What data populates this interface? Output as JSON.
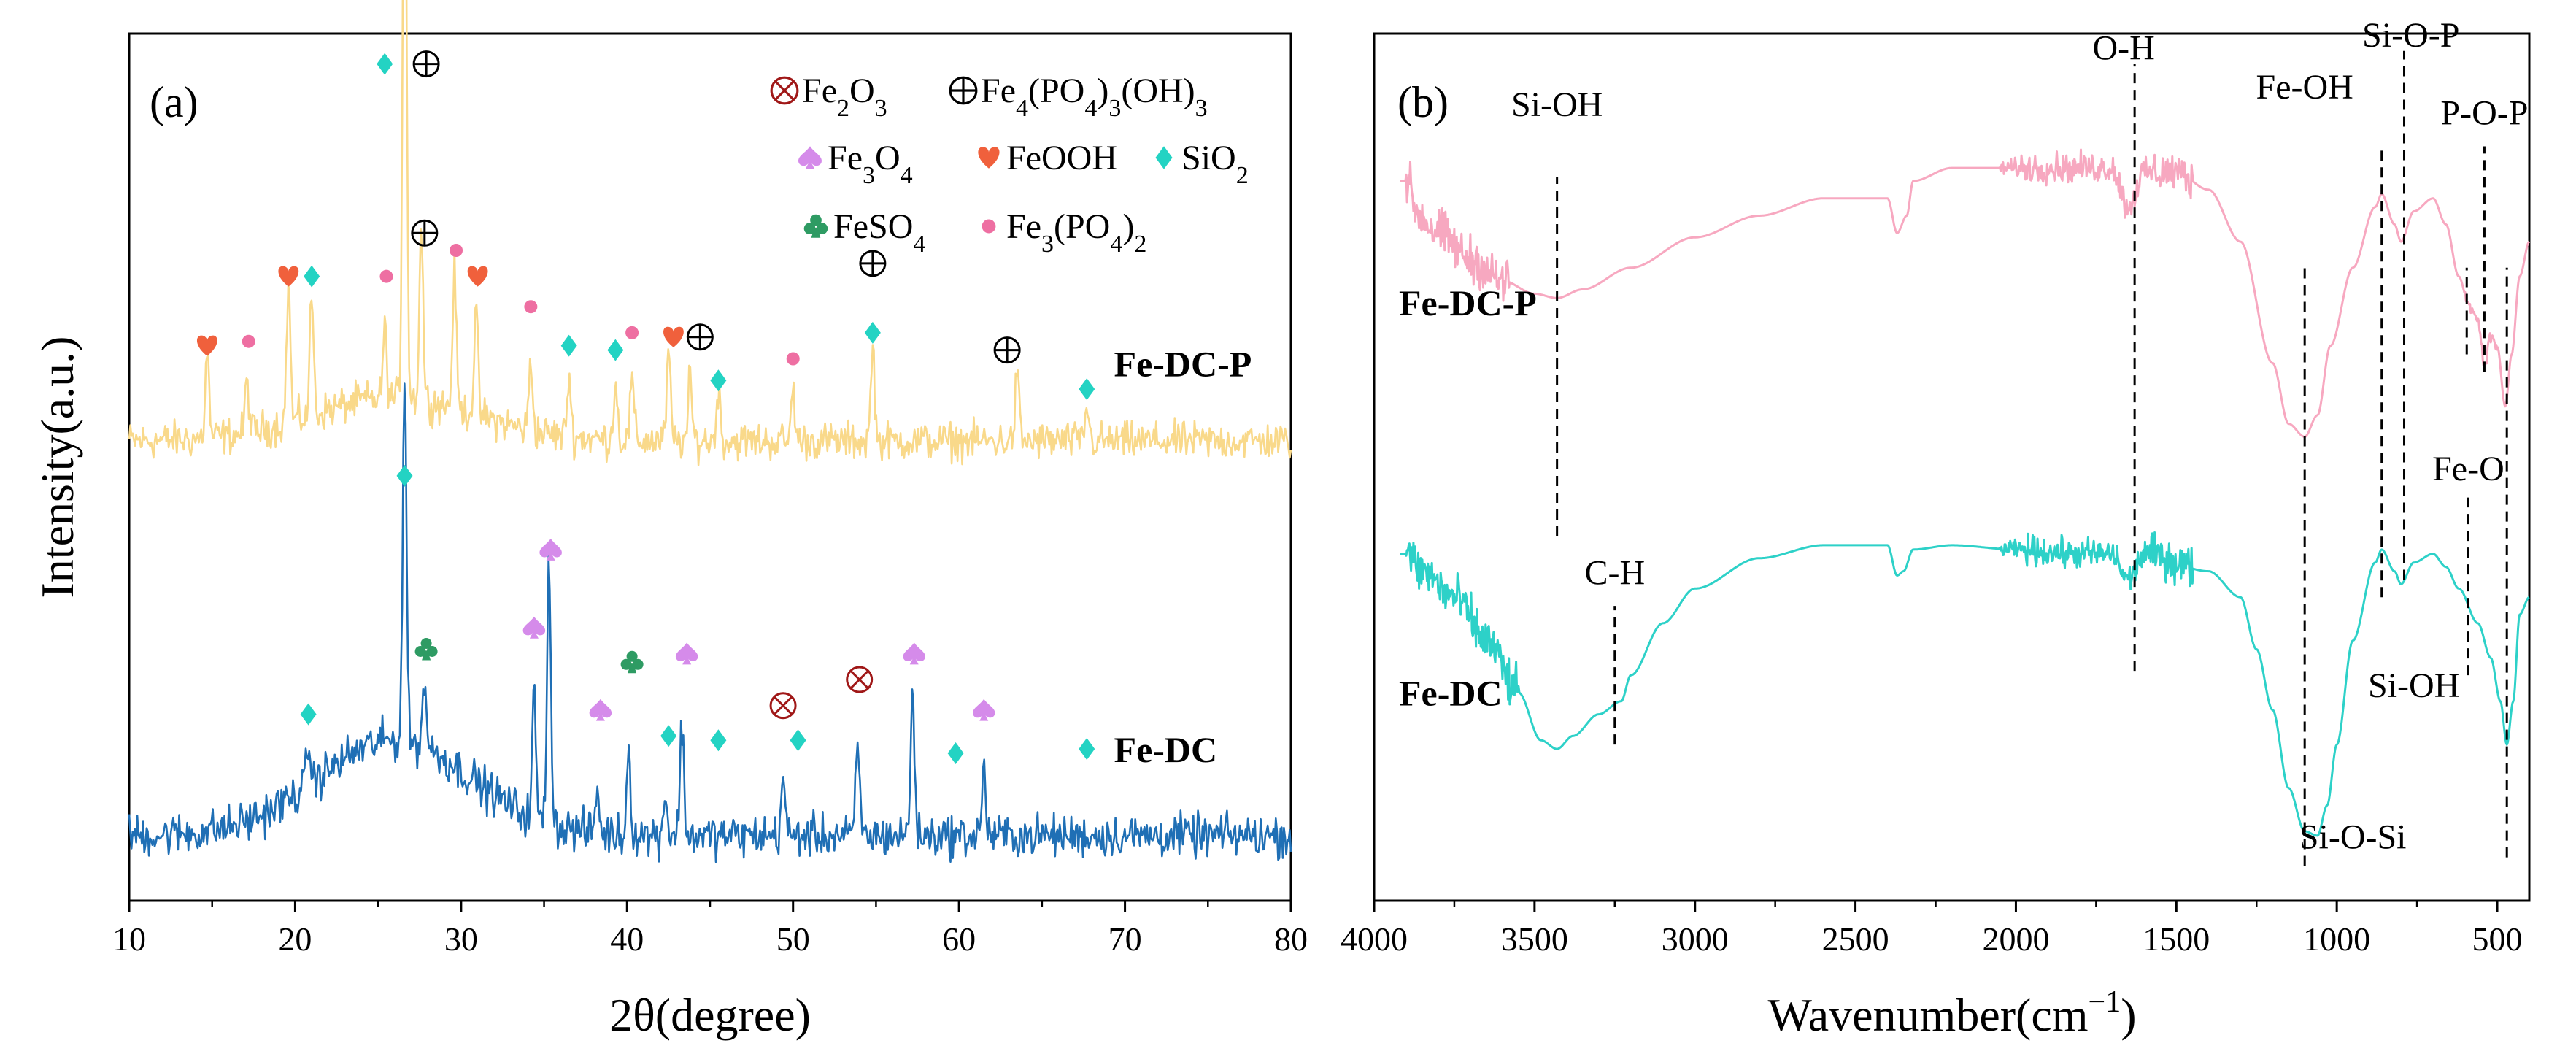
{
  "colors": {
    "xrd_fe_dc_p": "#F9D98A",
    "xrd_fe_dc": "#1F6FB5",
    "ftir_fe_dc_p": "#F7A8C0",
    "ftir_fe_dc": "#2DD1C8",
    "fe2o3": "#A01818",
    "feooh": "#F0603C",
    "fe3o4": "#D58BEA",
    "sio2": "#23D3C3",
    "feso4": "#2E9B63",
    "fe3po42": "#EE6FA2"
  },
  "chart_data": [
    {
      "type": "line",
      "panel_label": "(a)",
      "xlabel": "2θ(degree)",
      "ylabel": "Intensity(a.u.)",
      "xlim": [
        10,
        80
      ],
      "xticks": [
        10,
        20,
        30,
        40,
        50,
        60,
        70,
        80
      ],
      "xtick_labels": [
        "10",
        "20",
        "30",
        "40",
        "50",
        "60",
        "70",
        "80"
      ],
      "yticks_shown": false,
      "legend": {
        "placement": "top-right",
        "entries": [
          {
            "marker": "⊗",
            "marker_icon": "circled-times-icon",
            "label": "Fe2O3",
            "color": "#A01818"
          },
          {
            "marker": "⊕",
            "marker_icon": "circled-plus-icon",
            "label": "Fe4(PO4)3(OH)3",
            "color": "#000000"
          },
          {
            "marker": "♠",
            "marker_icon": "spade-icon",
            "label": "Fe3O4",
            "color": "#D58BEA"
          },
          {
            "marker": "♥",
            "marker_icon": "heart-icon",
            "label": "FeOOH",
            "color": "#F0603C"
          },
          {
            "marker": "♦",
            "marker_icon": "diamond-icon",
            "label": "SiO2",
            "color": "#23D3C3"
          },
          {
            "marker": "♣",
            "marker_icon": "club-icon",
            "label": "FeSO4",
            "color": "#2E9B63"
          },
          {
            "marker": "●",
            "marker_icon": "dot-icon",
            "label": "Fe3(PO4)2",
            "color": "#EE6FA2"
          }
        ]
      },
      "series": [
        {
          "name": "Fe-DC-P",
          "color": "#F9D98A",
          "baseline": 0.53,
          "hump": {
            "center": 26,
            "height": 0.05,
            "width": 7
          },
          "noise": 0.032,
          "peaks": [
            {
              "x": 14.7,
              "h": 0.1
            },
            {
              "x": 17.1,
              "h": 0.06
            },
            {
              "x": 19.6,
              "h": 0.16
            },
            {
              "x": 21.0,
              "h": 0.14
            },
            {
              "x": 25.4,
              "h": 0.08
            },
            {
              "x": 26.6,
              "h": 0.78
            },
            {
              "x": 27.6,
              "h": 0.2
            },
            {
              "x": 29.6,
              "h": 0.16
            },
            {
              "x": 30.9,
              "h": 0.12
            },
            {
              "x": 34.2,
              "h": 0.08
            },
            {
              "x": 36.5,
              "h": 0.07
            },
            {
              "x": 39.3,
              "h": 0.07
            },
            {
              "x": 40.3,
              "h": 0.07
            },
            {
              "x": 42.5,
              "h": 0.1
            },
            {
              "x": 43.8,
              "h": 0.07
            },
            {
              "x": 45.5,
              "h": 0.06
            },
            {
              "x": 50.0,
              "h": 0.06
            },
            {
              "x": 54.8,
              "h": 0.11
            },
            {
              "x": 63.5,
              "h": 0.08
            },
            {
              "x": 67.7,
              "h": 0.04
            }
          ],
          "markers": [
            {
              "x": 14.7,
              "y": 0.64,
              "type": "heart"
            },
            {
              "x": 17.2,
              "y": 0.645,
              "type": "dot"
            },
            {
              "x": 19.6,
              "y": 0.72,
              "type": "heart"
            },
            {
              "x": 21.0,
              "y": 0.72,
              "type": "diamond"
            },
            {
              "x": 25.4,
              "y": 0.965,
              "type": "diamond"
            },
            {
              "x": 27.9,
              "y": 0.965,
              "type": "plus"
            },
            {
              "x": 25.5,
              "y": 0.72,
              "type": "dot"
            },
            {
              "x": 27.8,
              "y": 0.77,
              "type": "plus"
            },
            {
              "x": 29.7,
              "y": 0.75,
              "type": "dot"
            },
            {
              "x": 31.0,
              "y": 0.72,
              "type": "heart"
            },
            {
              "x": 34.2,
              "y": 0.685,
              "type": "dot"
            },
            {
              "x": 36.5,
              "y": 0.64,
              "type": "diamond"
            },
            {
              "x": 39.3,
              "y": 0.635,
              "type": "diamond"
            },
            {
              "x": 40.3,
              "y": 0.655,
              "type": "dot"
            },
            {
              "x": 42.8,
              "y": 0.65,
              "type": "heart"
            },
            {
              "x": 44.4,
              "y": 0.65,
              "type": "plus"
            },
            {
              "x": 45.5,
              "y": 0.6,
              "type": "diamond"
            },
            {
              "x": 50.0,
              "y": 0.625,
              "type": "dot"
            },
            {
              "x": 54.8,
              "y": 0.735,
              "type": "plus"
            },
            {
              "x": 54.8,
              "y": 0.655,
              "type": "diamond"
            },
            {
              "x": 62.9,
              "y": 0.635,
              "type": "plus"
            },
            {
              "x": 67.7,
              "y": 0.59,
              "type": "diamond"
            }
          ]
        },
        {
          "name": "Fe-DC",
          "color": "#1F6FB5",
          "baseline": 0.075,
          "hump": {
            "center": 26,
            "height": 0.11,
            "width": 6.5
          },
          "noise": 0.036,
          "peaks": [
            {
              "x": 20.8,
              "h": 0.05
            },
            {
              "x": 26.6,
              "h": 0.42
            },
            {
              "x": 27.8,
              "h": 0.08
            },
            {
              "x": 34.4,
              "h": 0.14
            },
            {
              "x": 35.3,
              "h": 0.31
            },
            {
              "x": 38.2,
              "h": 0.05
            },
            {
              "x": 40.1,
              "h": 0.1
            },
            {
              "x": 42.3,
              "h": 0.05
            },
            {
              "x": 43.3,
              "h": 0.13
            },
            {
              "x": 49.4,
              "h": 0.07
            },
            {
              "x": 53.9,
              "h": 0.11
            },
            {
              "x": 57.2,
              "h": 0.17
            },
            {
              "x": 61.5,
              "h": 0.08
            }
          ],
          "markers": [
            {
              "x": 20.8,
              "y": 0.215,
              "type": "diamond"
            },
            {
              "x": 26.6,
              "y": 0.49,
              "type": "diamond"
            },
            {
              "x": 27.9,
              "y": 0.29,
              "type": "club"
            },
            {
              "x": 34.4,
              "y": 0.315,
              "type": "spade"
            },
            {
              "x": 35.4,
              "y": 0.405,
              "type": "spade"
            },
            {
              "x": 38.4,
              "y": 0.22,
              "type": "spade"
            },
            {
              "x": 40.3,
              "y": 0.275,
              "type": "club"
            },
            {
              "x": 42.5,
              "y": 0.19,
              "type": "diamond"
            },
            {
              "x": 43.6,
              "y": 0.285,
              "type": "spade"
            },
            {
              "x": 45.5,
              "y": 0.185,
              "type": "diamond"
            },
            {
              "x": 49.4,
              "y": 0.225,
              "type": "times"
            },
            {
              "x": 50.3,
              "y": 0.185,
              "type": "diamond"
            },
            {
              "x": 54.0,
              "y": 0.255,
              "type": "times"
            },
            {
              "x": 57.3,
              "y": 0.285,
              "type": "spade"
            },
            {
              "x": 59.8,
              "y": 0.17,
              "type": "diamond"
            },
            {
              "x": 61.5,
              "y": 0.22,
              "type": "spade"
            },
            {
              "x": 67.7,
              "y": 0.175,
              "type": "diamond"
            }
          ]
        }
      ]
    },
    {
      "type": "line",
      "panel_label": "(b)",
      "xlabel": "Wavenumber(cm−1)",
      "xlim": [
        4000,
        400
      ],
      "x_reversed": true,
      "xticks": [
        4000,
        3500,
        3000,
        2500,
        2000,
        1500,
        1000,
        500
      ],
      "xtick_labels": [
        "4000",
        "3500",
        "3000",
        "2500",
        "2000",
        "1500",
        "1000",
        "500"
      ],
      "yticks_shown": false,
      "series": [
        {
          "name": "Fe-DC-P",
          "color": "#F7A8C0",
          "anchors": [
            [
              4000,
              0.83
            ],
            [
              3900,
              0.83
            ],
            [
              3860,
              0.79
            ],
            [
              3800,
              0.77
            ],
            [
              3700,
              0.74
            ],
            [
              3600,
              0.715
            ],
            [
              3500,
              0.7
            ],
            [
              3430,
              0.695
            ],
            [
              3350,
              0.705
            ],
            [
              3200,
              0.73
            ],
            [
              3000,
              0.765
            ],
            [
              2800,
              0.79
            ],
            [
              2600,
              0.81
            ],
            [
              2400,
              0.81
            ],
            [
              2370,
              0.77
            ],
            [
              2340,
              0.79
            ],
            [
              2320,
              0.83
            ],
            [
              2200,
              0.845
            ],
            [
              2000,
              0.845
            ],
            [
              1800,
              0.845
            ],
            [
              1700,
              0.845
            ],
            [
              1650,
              0.8
            ],
            [
              1600,
              0.84
            ],
            [
              1500,
              0.84
            ],
            [
              1400,
              0.82
            ],
            [
              1300,
              0.76
            ],
            [
              1200,
              0.62
            ],
            [
              1150,
              0.55
            ],
            [
              1100,
              0.535
            ],
            [
              1060,
              0.56
            ],
            [
              1020,
              0.64
            ],
            [
              950,
              0.73
            ],
            [
              880,
              0.8
            ],
            [
              860,
              0.815
            ],
            [
              820,
              0.78
            ],
            [
              800,
              0.76
            ],
            [
              760,
              0.795
            ],
            [
              700,
              0.81
            ],
            [
              660,
              0.78
            ],
            [
              620,
              0.72
            ],
            [
              590,
              0.69
            ],
            [
              560,
              0.67
            ],
            [
              540,
              0.62
            ],
            [
              520,
              0.65
            ],
            [
              500,
              0.64
            ],
            [
              475,
              0.57
            ],
            [
              455,
              0.63
            ],
            [
              430,
              0.72
            ],
            [
              400,
              0.76
            ]
          ],
          "noise_bands": [
            [
              3900,
              3580,
              0.04
            ],
            [
              2050,
              1600,
              0.025
            ],
            [
              1600,
              1450,
              0.035
            ],
            [
              600,
              500,
              0.012
            ]
          ]
        },
        {
          "name": "Fe-DC",
          "color": "#2DD1C8",
          "anchors": [
            [
              4000,
              0.4
            ],
            [
              3900,
              0.4
            ],
            [
              3850,
              0.38
            ],
            [
              3750,
              0.35
            ],
            [
              3650,
              0.3
            ],
            [
              3550,
              0.24
            ],
            [
              3480,
              0.185
            ],
            [
              3430,
              0.175
            ],
            [
              3380,
              0.19
            ],
            [
              3300,
              0.215
            ],
            [
              3230,
              0.23
            ],
            [
              3200,
              0.26
            ],
            [
              3100,
              0.32
            ],
            [
              3000,
              0.36
            ],
            [
              2800,
              0.395
            ],
            [
              2600,
              0.41
            ],
            [
              2400,
              0.41
            ],
            [
              2370,
              0.375
            ],
            [
              2350,
              0.38
            ],
            [
              2320,
              0.405
            ],
            [
              2200,
              0.41
            ],
            [
              2000,
              0.405
            ],
            [
              1800,
              0.4
            ],
            [
              1700,
              0.4
            ],
            [
              1650,
              0.37
            ],
            [
              1600,
              0.4
            ],
            [
              1400,
              0.38
            ],
            [
              1300,
              0.35
            ],
            [
              1250,
              0.29
            ],
            [
              1200,
              0.22
            ],
            [
              1150,
              0.13
            ],
            [
              1100,
              0.08
            ],
            [
              1060,
              0.075
            ],
            [
              1030,
              0.11
            ],
            [
              1000,
              0.18
            ],
            [
              950,
              0.3
            ],
            [
              880,
              0.39
            ],
            [
              860,
              0.405
            ],
            [
              820,
              0.38
            ],
            [
              800,
              0.365
            ],
            [
              760,
              0.39
            ],
            [
              700,
              0.4
            ],
            [
              660,
              0.385
            ],
            [
              620,
              0.36
            ],
            [
              560,
              0.32
            ],
            [
              520,
              0.28
            ],
            [
              490,
              0.23
            ],
            [
              470,
              0.18
            ],
            [
              450,
              0.23
            ],
            [
              430,
              0.33
            ],
            [
              400,
              0.35
            ]
          ],
          "noise_bands": [
            [
              3900,
              3550,
              0.04
            ],
            [
              2050,
              1600,
              0.025
            ],
            [
              1600,
              1450,
              0.035
            ]
          ]
        }
      ],
      "annotations": [
        {
          "label": "Si-OH",
          "x": 3430,
          "line_from": 0.42,
          "line_to": 0.835,
          "text_y": 0.905,
          "text_dx": 0
        },
        {
          "label": "O-H",
          "x": 1630,
          "line_from": 0.265,
          "line_to": 0.965,
          "text_y": 0.97,
          "text_dx": -15
        },
        {
          "label": "Fe-OH",
          "x": 1100,
          "line_from": 0.04,
          "line_to": 0.73,
          "text_y": 0.925,
          "text_dx": 0
        },
        {
          "label": "Si-O-P",
          "x": 860,
          "line_from": 0.35,
          "line_to": 0.865,
          "text_y": 0.985,
          "text_dx": 40
        },
        {
          "label": "",
          "x": 790,
          "line_from": 0.37,
          "line_to": 0.98,
          "text_y": 0.0,
          "text_dx": 0
        },
        {
          "label": "P-O-P",
          "x": 540,
          "line_from": 0.61,
          "line_to": 0.87,
          "text_y": 0.895,
          "text_dx": 0
        },
        {
          "label": "",
          "x": 595,
          "line_from": 0.63,
          "line_to": 0.73,
          "text_y": 0.0,
          "text_dx": 0
        },
        {
          "label": "",
          "x": 470,
          "line_from": 0.05,
          "line_to": 0.73,
          "text_y": 0.0,
          "text_dx": 0
        },
        {
          "label": "C-H",
          "x": 3250,
          "line_from": 0.18,
          "line_to": 0.34,
          "text_y": 0.365,
          "text_dx": 0
        },
        {
          "label": "Fe-O",
          "x": 590,
          "line_from": 0.26,
          "line_to": 0.465,
          "text_y": 0.485,
          "text_dx": 0
        },
        {
          "label": "Si-OH",
          "x": 760,
          "line_from": 0.0,
          "line_to": 0.0,
          "text_y": 0.235,
          "text_dx": 0
        },
        {
          "label": "Si-O-Si",
          "x": 950,
          "line_from": 0.0,
          "line_to": 0.0,
          "text_y": 0.06,
          "text_dx": 0
        }
      ]
    }
  ]
}
